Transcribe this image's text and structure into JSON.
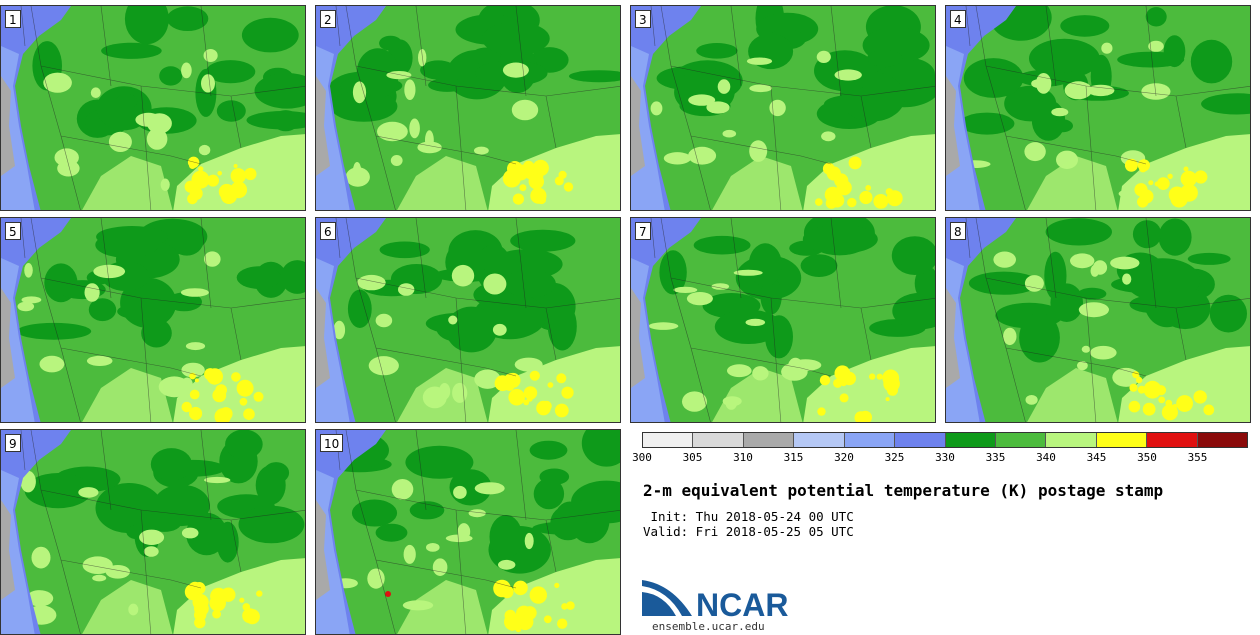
{
  "panels": [
    {
      "label": "1"
    },
    {
      "label": "2"
    },
    {
      "label": "3"
    },
    {
      "label": "4"
    },
    {
      "label": "5"
    },
    {
      "label": "6"
    },
    {
      "label": "7"
    },
    {
      "label": "8"
    },
    {
      "label": "9"
    },
    {
      "label": "10"
    }
  ],
  "colorbar": {
    "colors": [
      "#f0f0f0",
      "#d9d9d9",
      "#a9a9a9",
      "#b5c8f5",
      "#8aa5f5",
      "#6e82ee",
      "#0e9a1a",
      "#4cbb3d",
      "#b8f57e",
      "#ffff18",
      "#e01010",
      "#8a0a0a"
    ],
    "ticks": [
      "300",
      "305",
      "310",
      "315",
      "320",
      "325",
      "330",
      "335",
      "340",
      "345",
      "350",
      "355"
    ]
  },
  "title": "2-m equivalent potential temperature (K) postage stamp",
  "init": " Init: Thu 2018-05-24 00 UTC",
  "valid": "Valid: Fri 2018-05-25 05 UTC",
  "logo": {
    "text": "NCAR",
    "color": "#1a5a9a"
  },
  "site": "ensemble.ucar.edu"
}
